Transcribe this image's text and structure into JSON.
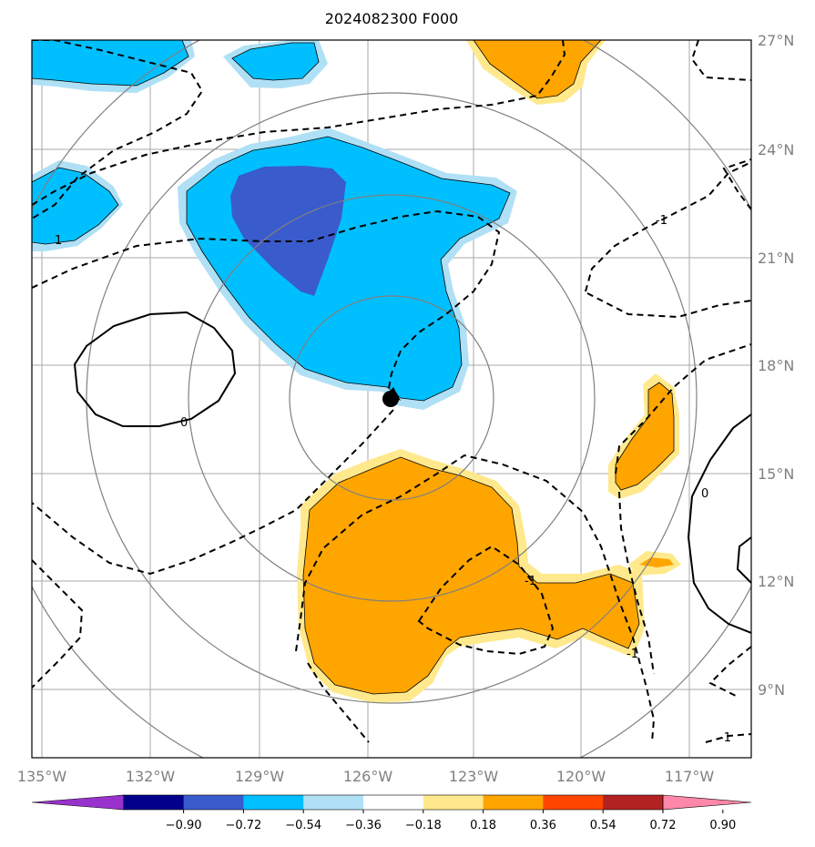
{
  "title": "2024082300 F000",
  "map": {
    "lon_labels": [
      "135°W",
      "132°W",
      "129°W",
      "126°W",
      "123°W",
      "120°W",
      "117°W"
    ],
    "lat_labels": [
      "27°N",
      "24°N",
      "21°N",
      "18°N",
      "15°N",
      "12°N",
      "9°N"
    ],
    "contour_labels": [
      "1",
      "0",
      "-1",
      "-1",
      "-1",
      "1",
      "0",
      "-1"
    ],
    "storm_center": "126°W, 17°N",
    "colors": {
      "grid": "#aaaaaa",
      "rings": "#808080"
    }
  },
  "colorbar": {
    "tick_labels": [
      "−0.90",
      "−0.72",
      "−0.54",
      "−0.36",
      "−0.18",
      "0.18",
      "0.36",
      "0.54",
      "0.72",
      "0.90"
    ],
    "colors": [
      "#9932cc",
      "#00008b",
      "#3a5bcc",
      "#00bfff",
      "#b0e0f5",
      "#ffffff",
      "#ffe98c",
      "#ffa500",
      "#ff4500",
      "#b22222",
      "#ff88aa"
    ]
  }
}
